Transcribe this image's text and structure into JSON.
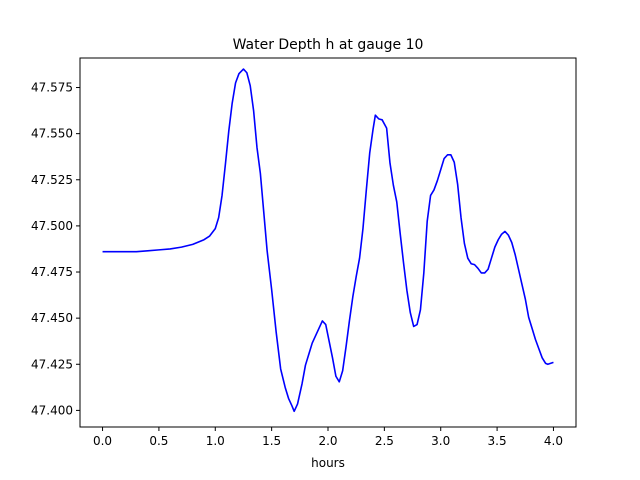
{
  "chart_data": {
    "type": "line",
    "title": "Water Depth h at gauge 10",
    "xlabel": "hours",
    "ylabel": "",
    "xlim": [
      -0.2,
      4.2
    ],
    "ylim": [
      47.391,
      47.591
    ],
    "grid": false,
    "x_ticks": [
      0.0,
      0.5,
      1.0,
      1.5,
      2.0,
      2.5,
      3.0,
      3.5,
      4.0
    ],
    "x_tick_labels": [
      "0.0",
      "0.5",
      "1.0",
      "1.5",
      "2.0",
      "2.5",
      "3.0",
      "3.5",
      "4.0"
    ],
    "y_ticks": [
      47.4,
      47.425,
      47.45,
      47.475,
      47.5,
      47.525,
      47.55,
      47.575
    ],
    "y_tick_labels": [
      "47.400",
      "47.425",
      "47.450",
      "47.475",
      "47.500",
      "47.525",
      "47.550",
      "47.575"
    ],
    "series": [
      {
        "color": "#0000ff",
        "points": [
          [
            0.0,
            47.486
          ],
          [
            0.1,
            47.486
          ],
          [
            0.2,
            47.486
          ],
          [
            0.3,
            47.486
          ],
          [
            0.4,
            47.4865
          ],
          [
            0.5,
            47.487
          ],
          [
            0.6,
            47.4875
          ],
          [
            0.7,
            47.4885
          ],
          [
            0.8,
            47.49
          ],
          [
            0.9,
            47.4925
          ],
          [
            0.95,
            47.4945
          ],
          [
            1.0,
            47.4985
          ],
          [
            1.03,
            47.5045
          ],
          [
            1.06,
            47.5165
          ],
          [
            1.09,
            47.5335
          ],
          [
            1.12,
            47.5515
          ],
          [
            1.15,
            47.5665
          ],
          [
            1.18,
            47.5775
          ],
          [
            1.21,
            47.5825
          ],
          [
            1.25,
            47.585
          ],
          [
            1.28,
            47.583
          ],
          [
            1.31,
            47.576
          ],
          [
            1.34,
            47.5625
          ],
          [
            1.37,
            47.5425
          ],
          [
            1.4,
            47.5285
          ],
          [
            1.43,
            47.5075
          ],
          [
            1.46,
            47.4865
          ],
          [
            1.5,
            47.4655
          ],
          [
            1.54,
            47.4425
          ],
          [
            1.58,
            47.4225
          ],
          [
            1.62,
            47.4125
          ],
          [
            1.65,
            47.4065
          ],
          [
            1.68,
            47.4025
          ],
          [
            1.7,
            47.3995
          ],
          [
            1.73,
            47.4035
          ],
          [
            1.77,
            47.4145
          ],
          [
            1.8,
            47.4245
          ],
          [
            1.83,
            47.4305
          ],
          [
            1.86,
            47.4365
          ],
          [
            1.89,
            47.4405
          ],
          [
            1.92,
            47.4445
          ],
          [
            1.95,
            47.4485
          ],
          [
            1.98,
            47.4465
          ],
          [
            2.01,
            47.4375
          ],
          [
            2.04,
            47.4285
          ],
          [
            2.07,
            47.4185
          ],
          [
            2.1,
            47.4155
          ],
          [
            2.13,
            47.4215
          ],
          [
            2.16,
            47.4345
          ],
          [
            2.19,
            47.4485
          ],
          [
            2.22,
            47.4615
          ],
          [
            2.25,
            47.4725
          ],
          [
            2.28,
            47.4825
          ],
          [
            2.31,
            47.4985
          ],
          [
            2.34,
            47.5195
          ],
          [
            2.37,
            47.5395
          ],
          [
            2.4,
            47.5525
          ],
          [
            2.42,
            47.56
          ],
          [
            2.45,
            47.558
          ],
          [
            2.48,
            47.5575
          ],
          [
            2.52,
            47.553
          ],
          [
            2.55,
            47.534
          ],
          [
            2.58,
            47.522
          ],
          [
            2.61,
            47.513
          ],
          [
            2.64,
            47.496
          ],
          [
            2.67,
            47.48
          ],
          [
            2.7,
            47.465
          ],
          [
            2.73,
            47.453
          ],
          [
            2.76,
            47.4455
          ],
          [
            2.79,
            47.4465
          ],
          [
            2.82,
            47.4545
          ],
          [
            2.85,
            47.4745
          ],
          [
            2.88,
            47.5025
          ],
          [
            2.91,
            47.5165
          ],
          [
            2.94,
            47.5195
          ],
          [
            2.97,
            47.5245
          ],
          [
            3.0,
            47.5305
          ],
          [
            3.03,
            47.5365
          ],
          [
            3.06,
            47.5385
          ],
          [
            3.09,
            47.5385
          ],
          [
            3.12,
            47.5345
          ],
          [
            3.15,
            47.5225
          ],
          [
            3.18,
            47.5045
          ],
          [
            3.21,
            47.4905
          ],
          [
            3.24,
            47.4825
          ],
          [
            3.27,
            47.4795
          ],
          [
            3.3,
            47.479
          ],
          [
            3.33,
            47.477
          ],
          [
            3.36,
            47.4745
          ],
          [
            3.39,
            47.4745
          ],
          [
            3.42,
            47.4765
          ],
          [
            3.45,
            47.4825
          ],
          [
            3.48,
            47.4885
          ],
          [
            3.51,
            47.4925
          ],
          [
            3.54,
            47.4955
          ],
          [
            3.57,
            47.497
          ],
          [
            3.6,
            47.495
          ],
          [
            3.63,
            47.491
          ],
          [
            3.66,
            47.4845
          ],
          [
            3.69,
            47.4765
          ],
          [
            3.72,
            47.4685
          ],
          [
            3.75,
            47.4605
          ],
          [
            3.78,
            47.4505
          ],
          [
            3.81,
            47.4445
          ],
          [
            3.84,
            47.4385
          ],
          [
            3.87,
            47.4335
          ],
          [
            3.9,
            47.4285
          ],
          [
            3.93,
            47.4255
          ],
          [
            3.95,
            47.425
          ],
          [
            4.0,
            47.426
          ]
        ]
      }
    ]
  }
}
